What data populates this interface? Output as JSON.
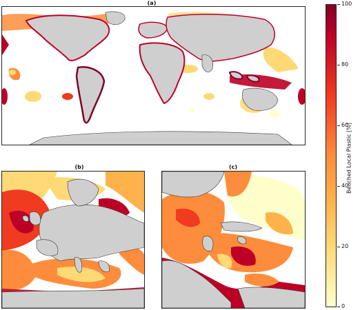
{
  "panels": {
    "a": {
      "label": "(a)"
    },
    "b": {
      "label": "(b)"
    },
    "c": {
      "label": "(c)"
    }
  },
  "colorbar": {
    "label": "Beached Local Plastic [%]",
    "ticks": [
      "100",
      "80",
      "60",
      "40",
      "20",
      "0"
    ],
    "range": [
      0,
      100
    ],
    "colors": [
      "#ffffcc",
      "#fed976",
      "#feb24c",
      "#fd8d3c",
      "#f03b20",
      "#bd0026",
      "#800026"
    ]
  },
  "map": {
    "land_color": "#cfcfcf",
    "ocean_color": "#ffffff",
    "coast_color": "#333333"
  }
}
